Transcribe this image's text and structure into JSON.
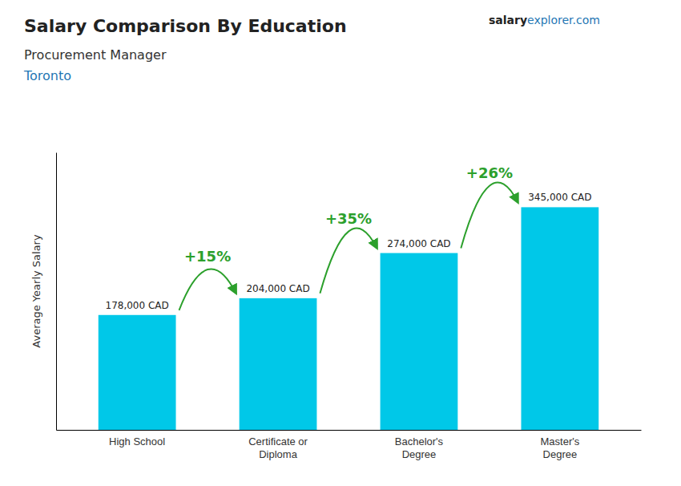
{
  "chart_data": {
    "type": "bar",
    "title": "Salary Comparison By Education",
    "subtitle": "Procurement Manager",
    "ylabel": "Average Yearly Salary",
    "annotations": [
      "Toronto",
      "salary",
      "explorer.com",
      "+15%",
      "+35%",
      "+26%"
    ],
    "categories": [
      "High School",
      "Certificate or\nDiploma",
      "Bachelor's\nDegree",
      "Master's\nDegree"
    ],
    "values": [
      178000,
      204000,
      274000,
      345000
    ],
    "value_labels": [
      "178,000 CAD",
      "204,000 CAD",
      "274,000 CAD",
      "345,000 CAD"
    ],
    "data_labels": true,
    "color": "#00c8e8",
    "ylim": [
      0,
      430000
    ],
    "tick_labels": "x",
    "grid": false
  }
}
